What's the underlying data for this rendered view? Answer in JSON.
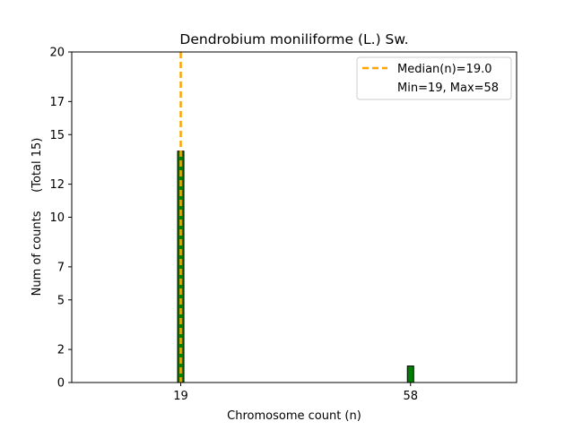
{
  "chart_data": {
    "type": "bar",
    "title": "Dendrobium moniliforme (L.) Sw.",
    "xlabel": "Chromosome count (n)",
    "ylabel": "Num of counts     (Total 15)",
    "x_ticks": [
      19,
      58
    ],
    "y_ticks": [
      0,
      2,
      5,
      7,
      10,
      12,
      15,
      17,
      20
    ],
    "xlim": [
      0.5,
      76
    ],
    "ylim": [
      0,
      20
    ],
    "series": [
      {
        "name": "counts",
        "x": [
          19,
          58
        ],
        "values": [
          14,
          1
        ]
      }
    ],
    "median": 19.0,
    "min": 19,
    "max": 58,
    "legend": {
      "location": "top-right",
      "entries": [
        "Median(n)=19.0",
        "Min=19, Max=58"
      ]
    },
    "colors": {
      "bar": "#008000",
      "bar_edge": "#000000",
      "median_line": "#FFA500"
    }
  }
}
